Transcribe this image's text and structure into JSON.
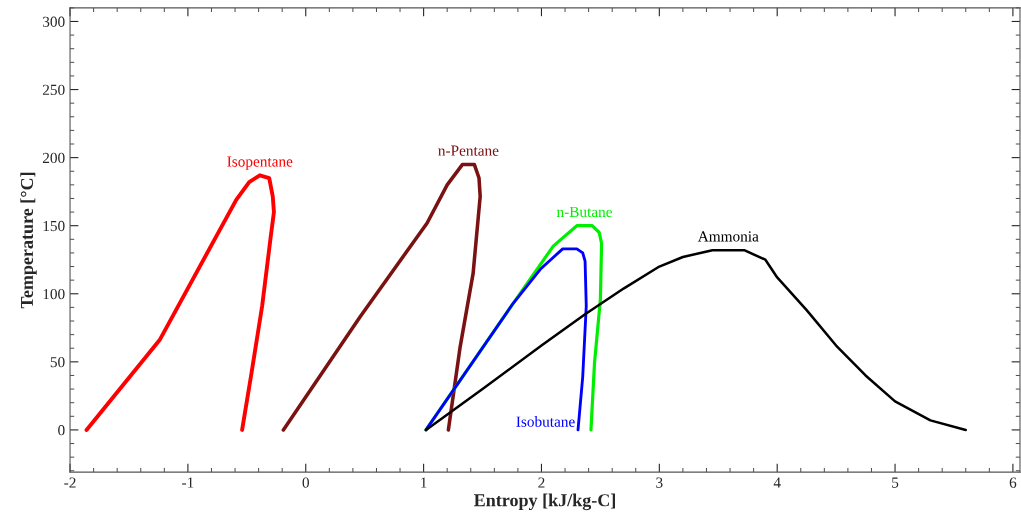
{
  "chart_data": {
    "type": "line",
    "xlabel": "Entropy [kJ/kg-C]",
    "ylabel": "Temperature [°C]",
    "xlim": [
      -2,
      6.06
    ],
    "ylim": [
      -31,
      310
    ],
    "xticks": [
      -2,
      -1,
      0,
      1,
      2,
      3,
      4,
      5,
      6
    ],
    "yticks": [
      0,
      50,
      100,
      150,
      200,
      250,
      300
    ],
    "grid": false,
    "marker": "none",
    "line_style": "solid",
    "series": [
      {
        "name": "Isopentane",
        "color": "#ff0000",
        "x": [
          -1.86,
          -1.24,
          -0.59,
          -0.48,
          -0.39,
          -0.31,
          -0.28,
          -0.27,
          -0.3,
          -0.37,
          -0.46,
          -0.54
        ],
        "values": [
          0,
          66,
          169,
          182,
          187,
          185,
          171.5,
          160,
          140,
          91,
          42,
          0
        ]
      },
      {
        "name": "n-Pentane",
        "color": "#7a1212",
        "x": [
          -0.19,
          0.46,
          1.03,
          1.2,
          1.33,
          1.43,
          1.47,
          1.48,
          1.42,
          1.31,
          1.21
        ],
        "values": [
          0,
          83,
          152,
          180,
          195,
          195,
          185,
          171.5,
          115,
          61,
          0
        ]
      },
      {
        "name": "n-Butane",
        "color": "#00ee00",
        "x": [
          1.02,
          1.76,
          2.1,
          2.3,
          2.43,
          2.49,
          2.51,
          2.5,
          2.45,
          2.42
        ],
        "values": [
          0,
          93,
          135,
          150,
          150,
          145,
          137,
          96,
          49,
          0
        ]
      },
      {
        "name": "Isobutane",
        "color": "#0000ff",
        "x": [
          1.02,
          1.76,
          1.99,
          2.18,
          2.3,
          2.35,
          2.37,
          2.38,
          2.35,
          2.31
        ],
        "values": [
          0,
          93,
          118,
          133,
          133,
          130,
          124,
          91,
          39,
          0
        ]
      },
      {
        "name": "Ammonia",
        "color": "#000000",
        "x": [
          1.02,
          1.5,
          2.0,
          2.37,
          2.7,
          3.0,
          3.2,
          3.45,
          3.72,
          3.9,
          4.0,
          4.25,
          4.5,
          4.75,
          5.0,
          5.3,
          5.6
        ],
        "values": [
          0,
          30,
          62,
          85,
          104,
          120,
          127,
          132,
          132,
          125,
          112,
          88,
          62,
          40,
          21,
          7,
          0
        ]
      }
    ]
  }
}
